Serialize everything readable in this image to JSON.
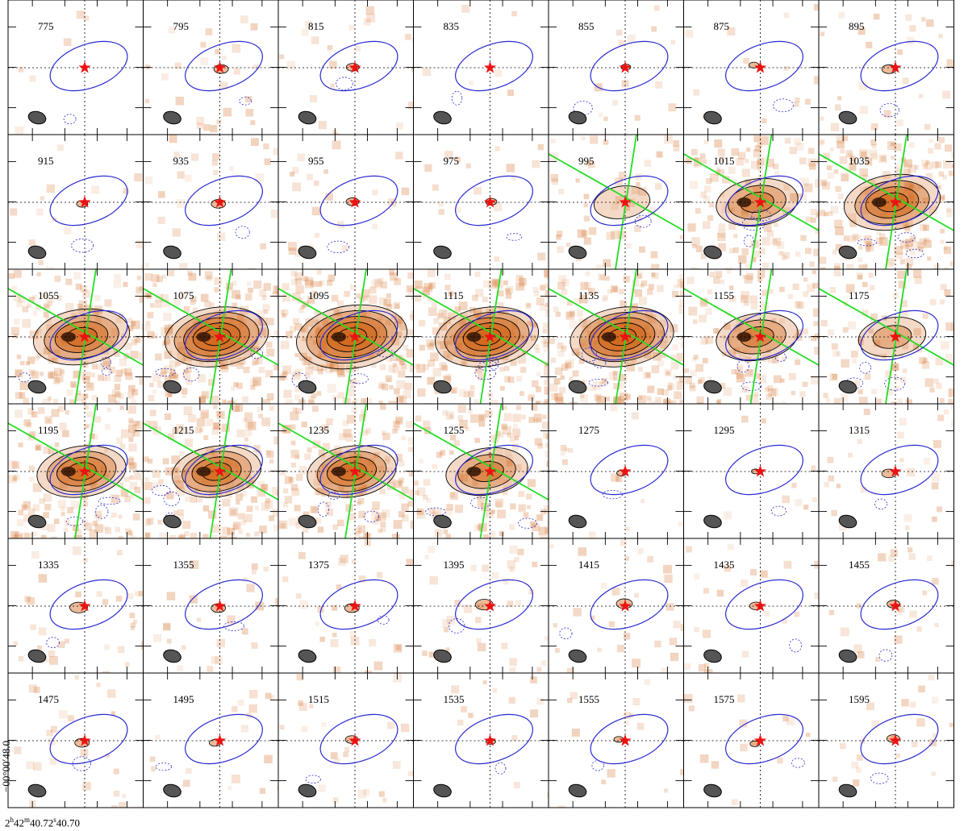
{
  "figure": {
    "panels": [
      "775",
      "795",
      "815",
      "835",
      "855",
      "875",
      "895",
      "915",
      "935",
      "955",
      "975",
      "995",
      "1015",
      "1035",
      "1055",
      "1075",
      "1095",
      "1115",
      "1135",
      "1155",
      "1175",
      "1195",
      "1215",
      "1235",
      "1255",
      "1275",
      "1295",
      "1315",
      "1335",
      "1355",
      "1375",
      "1395",
      "1415",
      "1435",
      "1455",
      "1475",
      "1495",
      "1515",
      "1535",
      "1555",
      "1575",
      "1595"
    ],
    "rows": 6,
    "cols": 7,
    "emission_strength": [
      0,
      0.5,
      0.4,
      0,
      0.2,
      0.2,
      0.5,
      0.3,
      0.5,
      0.4,
      0.3,
      1.2,
      3,
      4,
      4,
      4.5,
      5,
      4.5,
      4.5,
      3,
      2,
      3.5,
      3.5,
      3.5,
      3,
      0.2,
      0.1,
      0.5,
      0.7,
      0.5,
      0.5,
      0.7,
      0.6,
      0.4,
      0.4,
      0.5,
      0.3,
      0.4,
      0.2,
      0.2,
      0.2,
      0.4
    ],
    "green_cross_panels": [
      "995",
      "1015",
      "1035",
      "1055",
      "1075",
      "1095",
      "1115",
      "1135",
      "1155",
      "1175",
      "1195",
      "1215",
      "1235",
      "1255"
    ],
    "ra_axis_label_h": "2",
    "ra_axis_label_m": "42",
    "ra_axis_label_s": "40.72",
    "ra_axis_label_s2": "40.70",
    "dec_axis_label": "−00°00′48.0",
    "colors": {
      "emission": "#d2691e",
      "contour": "#000000",
      "neg_contour": "#2a2ad0",
      "ellipse": "#2a2ad0",
      "star": "#ee1111",
      "axes_cross": "#22dd22",
      "beam": "#555555"
    }
  }
}
